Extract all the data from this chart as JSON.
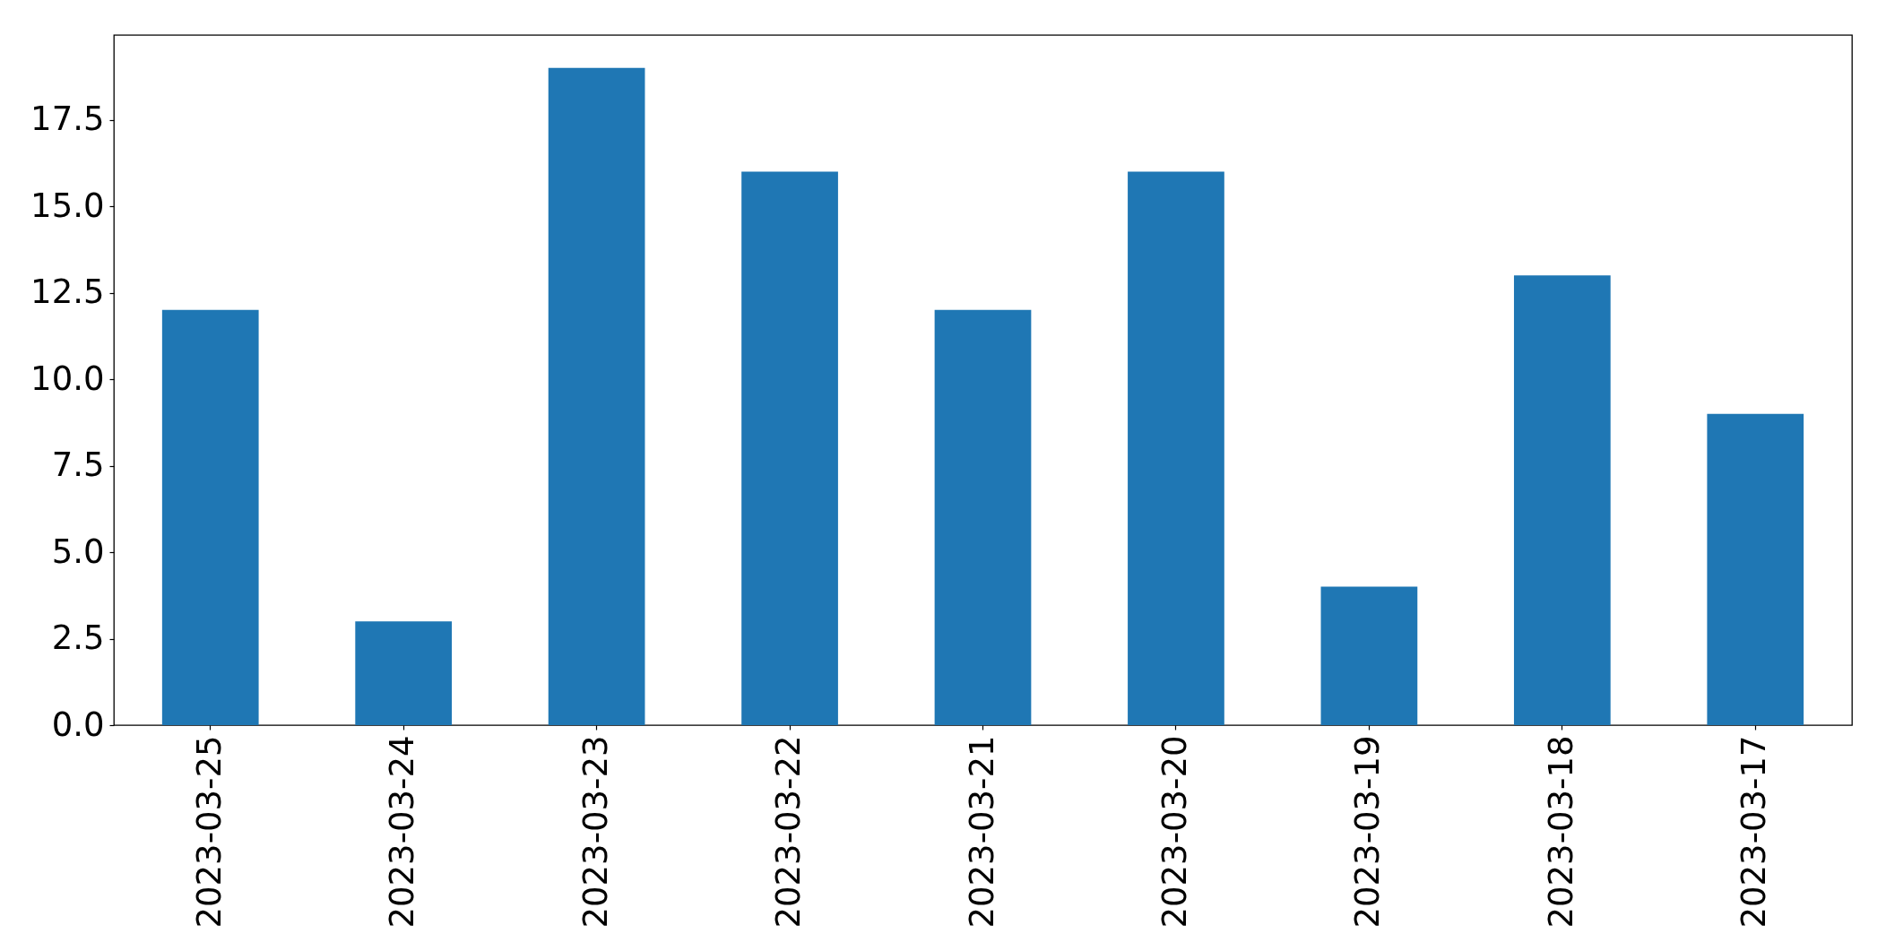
{
  "chart_data": {
    "type": "bar",
    "categories": [
      "2023-03-25",
      "2023-03-24",
      "2023-03-23",
      "2023-03-22",
      "2023-03-21",
      "2023-03-20",
      "2023-03-19",
      "2023-03-18",
      "2023-03-17"
    ],
    "values": [
      12,
      3,
      19,
      16,
      12,
      16,
      4,
      13,
      9
    ],
    "color": "#1f77b4",
    "ylim": [
      0,
      19.95
    ],
    "yticks": [
      {
        "value": 0,
        "label": "0.0"
      },
      2.5,
      {
        "value": 5,
        "label": "5.0"
      },
      7.5,
      {
        "value": 10,
        "label": "10.0"
      },
      12.5,
      {
        "value": 15,
        "label": "15.0"
      },
      17.5
    ]
  }
}
